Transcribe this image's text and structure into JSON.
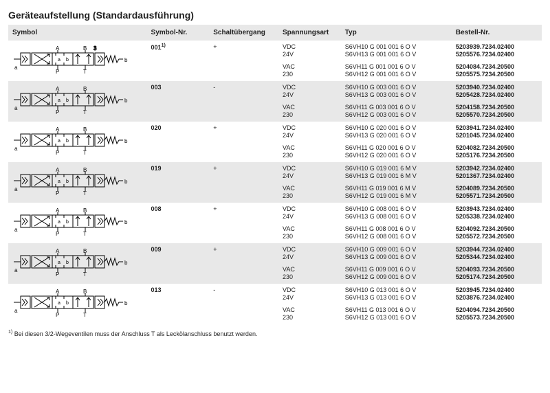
{
  "title": "Geräteaufstellung (Standardausführung)",
  "columns": [
    "Symbol",
    "Symbol-Nr.",
    "Schaltübergang",
    "Spannungsart",
    "Typ",
    "Bestell-Nr."
  ],
  "footnote_marker": "1)",
  "footnote": "Bei diesen 3/2-Wegeventilen muss der Anschluss T als Leckölanschluss benutzt werden.",
  "colors": {
    "header_bg": "#e8e8e8",
    "row_alt_bg": "#e8e8e8",
    "row_bg": "#ffffff",
    "text": "#222222",
    "symbol_stroke": "#000000"
  },
  "symbol_glyphs": {
    "port_labels_top": [
      "A",
      "B"
    ],
    "port_labels_bottom": [
      "P",
      "T"
    ],
    "side_labels": [
      "a",
      "b"
    ],
    "extra_top_right": "3"
  },
  "rows": [
    {
      "alt": false,
      "symbolnr": "001",
      "symbolnr_sup": "1)",
      "schalt": "+",
      "groups": [
        {
          "span": [
            "VDC",
            "24V"
          ],
          "typ": [
            "S6VH10 G 001 001 6 O V",
            "S6VH13 G 001 001 6 O V"
          ],
          "best": [
            "5203939.7234.02400",
            "5205576.7234.02400"
          ]
        },
        {
          "span": [
            "VAC",
            "230"
          ],
          "typ": [
            "S6VH11 G 001 001 6 O V",
            "S6VH12 G 001 001 6 O V"
          ],
          "best": [
            "5204084.7234.20500",
            "5205575.7234.20500"
          ]
        }
      ]
    },
    {
      "alt": true,
      "symbolnr": "003",
      "schalt": "-",
      "groups": [
        {
          "span": [
            "VDC",
            "24V"
          ],
          "typ": [
            "S6VH10 G 003 001 6 O V",
            "S6VH13 G 003 001 6 O V"
          ],
          "best": [
            "5203940.7234.02400",
            "5205428.7234.02400"
          ]
        },
        {
          "span": [
            "VAC",
            "230"
          ],
          "typ": [
            "S6VH11 G 003 001 6 O V",
            "S6VH12 G 003 001 6 O V"
          ],
          "best": [
            "5204158.7234.20500",
            "5205570.7234.20500"
          ]
        }
      ]
    },
    {
      "alt": false,
      "symbolnr": "020",
      "schalt": "+",
      "groups": [
        {
          "span": [
            "VDC",
            "24V"
          ],
          "typ": [
            "S6VH10 G 020 001 6 O V",
            "S6VH13 G 020 001 6 O V"
          ],
          "best": [
            "5203941.7234.02400",
            "5201045.7234.02400"
          ]
        },
        {
          "span": [
            "VAC",
            "230"
          ],
          "typ": [
            "S6VH11 G 020 001 6 O V",
            "S6VH12 G 020 001 6 O V"
          ],
          "best": [
            "5204082.7234.20500",
            "5205176.7234.20500"
          ]
        }
      ]
    },
    {
      "alt": true,
      "symbolnr": "019",
      "schalt": "+",
      "groups": [
        {
          "span": [
            "VDC",
            "24V"
          ],
          "typ": [
            "S6VH10 G 019 001 6 M V",
            "S6VH13 G 019 001 6 M V"
          ],
          "best": [
            "5203942.7234.02400",
            "5201367.7234.02400"
          ]
        },
        {
          "span": [
            "VAC",
            "230"
          ],
          "typ": [
            "S6VH11 G 019 001 6 M V",
            "S6VH12 G 019 001 6 M V"
          ],
          "best": [
            "5204089.7234.20500",
            "5205571.7234.20500"
          ]
        }
      ]
    },
    {
      "alt": false,
      "symbolnr": "008",
      "schalt": "+",
      "groups": [
        {
          "span": [
            "VDC",
            "24V"
          ],
          "typ": [
            "S6VH10 G 008 001 6 O V",
            "S6VH13 G 008 001 6 O V"
          ],
          "best": [
            "5203943.7234.02400",
            "5205338.7234.02400"
          ]
        },
        {
          "span": [
            "VAC",
            "230"
          ],
          "typ": [
            "S6VH11 G 008 001 6 O V",
            "S6VH12 G 008 001 6 O V"
          ],
          "best": [
            "5204092.7234.20500",
            "5205572.7234.20500"
          ]
        }
      ]
    },
    {
      "alt": true,
      "symbolnr": "009",
      "schalt": "+",
      "groups": [
        {
          "span": [
            "VDC",
            "24V"
          ],
          "typ": [
            "S6VH10 G 009 001 6 O V",
            "S6VH13 G 009 001 6 O V"
          ],
          "best": [
            "5203944.7234.02400",
            "5205344.7234.02400"
          ]
        },
        {
          "span": [
            "VAC",
            "230"
          ],
          "typ": [
            "S6VH11 G 009 001 6 O V",
            "S6VH12 G 009 001 6 O V"
          ],
          "best": [
            "5204093.7234.20500",
            "5205174.7234.20500"
          ]
        }
      ]
    },
    {
      "alt": false,
      "symbolnr": "013",
      "schalt": "-",
      "groups": [
        {
          "span": [
            "VDC",
            "24V"
          ],
          "typ": [
            "S6VH10 G 013 001 6 O V",
            "S6VH13 G 013 001 6 O V"
          ],
          "best": [
            "5203945.7234.02400",
            "5203876.7234.02400"
          ]
        },
        {
          "span": [
            "VAC",
            "230"
          ],
          "typ": [
            "S6VH11 G 013 001 6 O V",
            "S6VH12 G 013 001 6 O V"
          ],
          "best": [
            "5204094.7234.20500",
            "5205573.7234.20500"
          ]
        }
      ]
    }
  ]
}
